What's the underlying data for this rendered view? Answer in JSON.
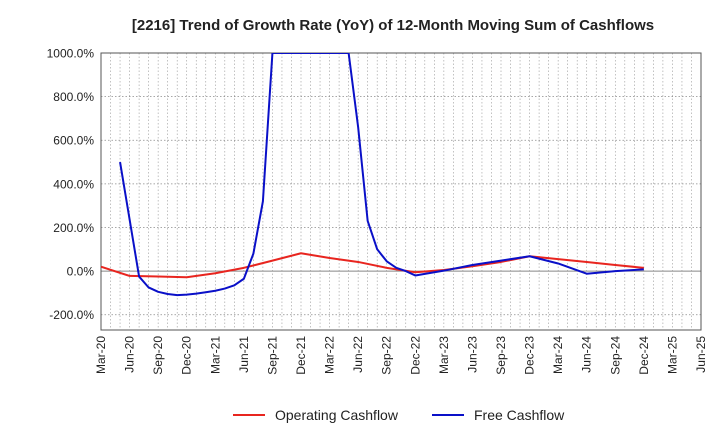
{
  "chart_data": {
    "type": "line",
    "title": "[2216]  Trend of Growth Rate (YoY) of 12-Month Moving Sum of Cashflows",
    "xlabel": "",
    "ylabel": "",
    "ylim": [
      -270,
      1000
    ],
    "yticks": [
      -200,
      0,
      200,
      400,
      600,
      800,
      1000
    ],
    "ytick_labels": [
      "-200.0%",
      "0.0%",
      "200.0%",
      "400.0%",
      "600.0%",
      "800.0%",
      "1000.0%"
    ],
    "xticks": [
      "Mar-20",
      "Jun-20",
      "Sep-20",
      "Dec-20",
      "Mar-21",
      "Jun-21",
      "Sep-21",
      "Dec-21",
      "Mar-22",
      "Jun-22",
      "Sep-22",
      "Dec-22",
      "Mar-23",
      "Jun-23",
      "Sep-23",
      "Dec-23",
      "Mar-24",
      "Jun-24",
      "Sep-24",
      "Dec-24",
      "Mar-25",
      "Jun-25"
    ],
    "grid": true,
    "legend_position": "bottom",
    "series": [
      {
        "name": "Operating Cashflow",
        "color": "#e8251f",
        "points": [
          [
            "Mar-20",
            20
          ],
          [
            "Jun-20",
            -22
          ],
          [
            "Sep-20",
            -25
          ],
          [
            "Dec-20",
            -28
          ],
          [
            "Mar-21",
            -10
          ],
          [
            "Jun-21",
            15
          ],
          [
            "Sep-21",
            48
          ],
          [
            "Dec-21",
            82
          ],
          [
            "Mar-22",
            60
          ],
          [
            "Jun-22",
            42
          ],
          [
            "Sep-22",
            15
          ],
          [
            "Dec-22",
            -5
          ],
          [
            "Mar-23",
            5
          ],
          [
            "Jun-23",
            22
          ],
          [
            "Sep-23",
            42
          ],
          [
            "Dec-23",
            68
          ],
          [
            "Mar-24",
            55
          ],
          [
            "Jun-24",
            42
          ],
          [
            "Sep-24",
            28
          ],
          [
            "Dec-24",
            15
          ]
        ]
      },
      {
        "name": "Free Cashflow",
        "color": "#0a10c8",
        "points": [
          [
            "May-20",
            500
          ],
          [
            "Jul-20",
            -25
          ],
          [
            "Aug-20",
            -75
          ],
          [
            "Sep-20",
            -95
          ],
          [
            "Oct-20",
            -105
          ],
          [
            "Nov-20",
            -110
          ],
          [
            "Dec-20",
            -108
          ],
          [
            "Jan-21",
            -103
          ],
          [
            "Feb-21",
            -97
          ],
          [
            "Mar-21",
            -90
          ],
          [
            "Apr-21",
            -80
          ],
          [
            "May-21",
            -65
          ],
          [
            "Jun-21",
            -35
          ],
          [
            "Jul-21",
            80
          ],
          [
            "Aug-21",
            320
          ],
          [
            "Sep-21",
            1000
          ],
          [
            "May-22",
            1000
          ],
          [
            "Jun-22",
            660
          ],
          [
            "Jul-22",
            230
          ],
          [
            "Aug-22",
            100
          ],
          [
            "Sep-22",
            45
          ],
          [
            "Oct-22",
            15
          ],
          [
            "Nov-22",
            0
          ],
          [
            "Dec-22",
            -20
          ],
          [
            "Mar-23",
            2
          ],
          [
            "Jun-23",
            28
          ],
          [
            "Sep-23",
            48
          ],
          [
            "Dec-23",
            68
          ],
          [
            "Mar-24",
            35
          ],
          [
            "Jun-24",
            -12
          ],
          [
            "Sep-24",
            0
          ],
          [
            "Dec-24",
            8
          ]
        ]
      }
    ]
  }
}
